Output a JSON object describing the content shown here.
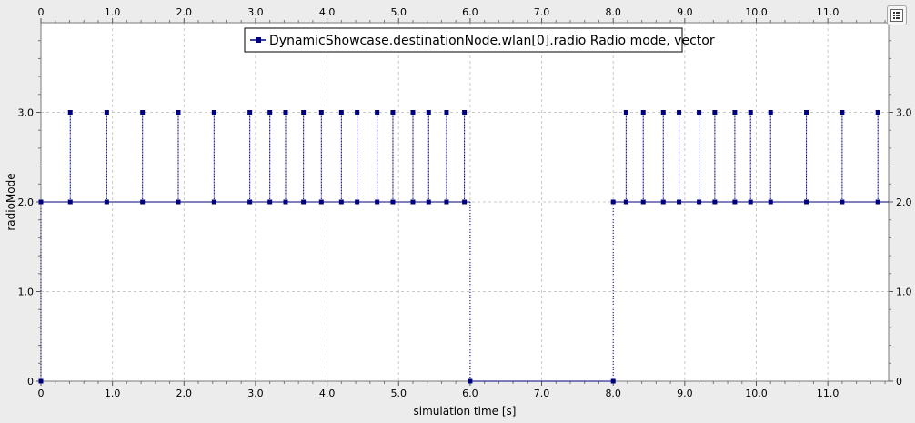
{
  "chart_data": {
    "type": "line",
    "title": "",
    "xlabel": "simulation time [s]",
    "ylabel": "radioMode",
    "xlim": [
      0,
      11.85
    ],
    "ylim": [
      0,
      4.0
    ],
    "xticks": [
      0,
      1.0,
      2.0,
      3.0,
      4.0,
      5.0,
      6.0,
      7.0,
      8.0,
      9.0,
      10.0,
      11.0
    ],
    "xtick_labels": [
      "0",
      "1.0",
      "2.0",
      "3.0",
      "4.0",
      "5.0",
      "6.0",
      "7.0",
      "8.0",
      "9.0",
      "10.0",
      "11.0"
    ],
    "yticks": [
      0,
      1.0,
      2.0,
      3.0
    ],
    "ytick_labels": [
      "0",
      "1.0",
      "2.0",
      "3.0"
    ],
    "grid": true,
    "legend_position": "top-center",
    "line_style": "sample-hold",
    "color": "#00007f",
    "series": [
      {
        "name": "DynamicShowcase.destinationNode.wlan[0].radio Radio mode, vector",
        "points": [
          [
            0,
            0
          ],
          [
            0,
            2
          ],
          [
            0.41,
            3
          ],
          [
            0.41,
            2
          ],
          [
            0.92,
            3
          ],
          [
            0.92,
            2
          ],
          [
            1.42,
            3
          ],
          [
            1.42,
            2
          ],
          [
            1.92,
            3
          ],
          [
            1.92,
            2
          ],
          [
            2.42,
            3
          ],
          [
            2.42,
            2
          ],
          [
            2.92,
            3
          ],
          [
            2.92,
            2
          ],
          [
            3.2,
            3
          ],
          [
            3.2,
            2
          ],
          [
            3.42,
            3
          ],
          [
            3.42,
            2
          ],
          [
            3.67,
            3
          ],
          [
            3.67,
            2
          ],
          [
            3.92,
            3
          ],
          [
            3.92,
            2
          ],
          [
            4.2,
            3
          ],
          [
            4.2,
            2
          ],
          [
            4.42,
            3
          ],
          [
            4.42,
            2
          ],
          [
            4.7,
            3
          ],
          [
            4.7,
            2
          ],
          [
            4.92,
            3
          ],
          [
            4.92,
            2
          ],
          [
            5.2,
            3
          ],
          [
            5.2,
            2
          ],
          [
            5.42,
            3
          ],
          [
            5.42,
            2
          ],
          [
            5.67,
            3
          ],
          [
            5.67,
            2
          ],
          [
            5.92,
            3
          ],
          [
            5.92,
            2
          ],
          [
            6.0,
            0
          ],
          [
            8.0,
            0
          ],
          [
            8.0,
            2
          ],
          [
            8.18,
            3
          ],
          [
            8.18,
            2
          ],
          [
            8.42,
            3
          ],
          [
            8.42,
            2
          ],
          [
            8.7,
            3
          ],
          [
            8.7,
            2
          ],
          [
            8.92,
            3
          ],
          [
            8.92,
            2
          ],
          [
            9.2,
            3
          ],
          [
            9.2,
            2
          ],
          [
            9.42,
            3
          ],
          [
            9.42,
            2
          ],
          [
            9.7,
            3
          ],
          [
            9.7,
            2
          ],
          [
            9.92,
            3
          ],
          [
            9.92,
            2
          ],
          [
            10.2,
            3
          ],
          [
            10.2,
            2
          ],
          [
            10.7,
            3
          ],
          [
            10.7,
            2
          ],
          [
            11.2,
            3
          ],
          [
            11.2,
            2
          ],
          [
            11.7,
            3
          ],
          [
            11.7,
            2
          ]
        ]
      }
    ]
  },
  "toolbar": {
    "options_icon": "list-options-icon"
  }
}
